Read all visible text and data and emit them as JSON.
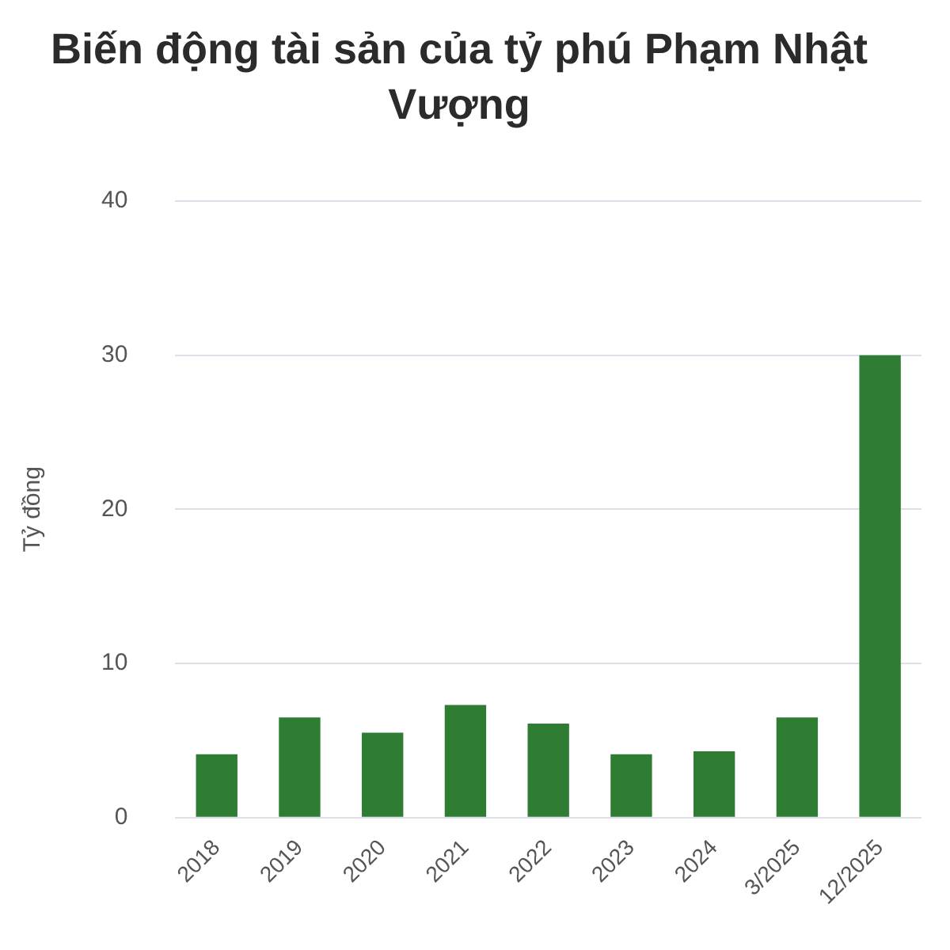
{
  "chart_data": {
    "type": "bar",
    "title": "Biến động tài sản của tỷ phú Phạm Nhật Vượng",
    "ylabel": "Tỷ đồng",
    "categories": [
      "2018",
      "2019",
      "2020",
      "2021",
      "2022",
      "2023",
      "2024",
      "3/2025",
      "12/2025"
    ],
    "values": [
      4.1,
      6.5,
      5.5,
      7.3,
      6.1,
      4.1,
      4.3,
      6.5,
      30
    ],
    "color": "#2e7d32",
    "ylim": [
      0,
      40
    ],
    "yticks": [
      0,
      10,
      20,
      30,
      40
    ],
    "grid": "y",
    "legend": false
  }
}
